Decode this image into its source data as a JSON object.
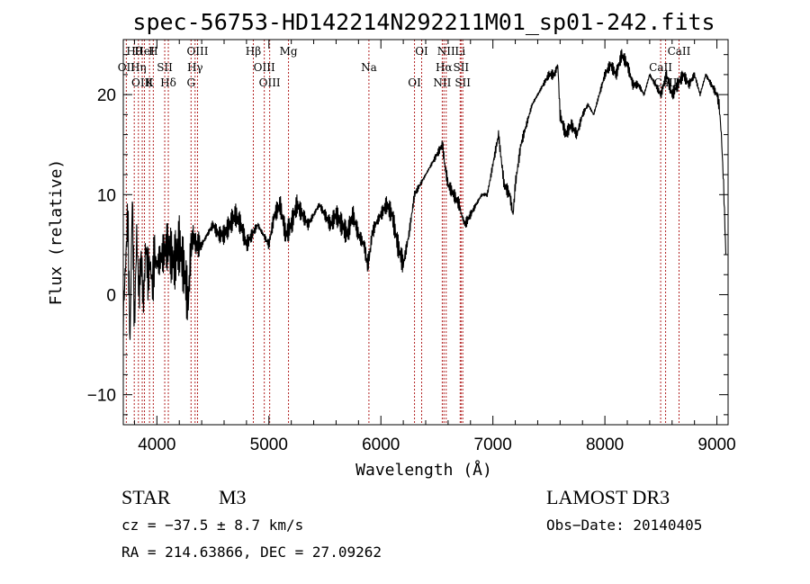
{
  "chart_data": {
    "type": "line",
    "title": "spec-56753-HD142214N292211M01_sp01-242.fits",
    "xlabel": "Wavelength (Å)",
    "ylabel": "Flux (relative)",
    "xlim": [
      3700,
      9100
    ],
    "ylim": [
      -13,
      25.5
    ],
    "x_ticks": [
      4000,
      5000,
      6000,
      7000,
      8000,
      9000
    ],
    "y_ticks": [
      -10,
      0,
      10,
      20
    ],
    "grid": false,
    "series": [
      {
        "name": "spectrum",
        "x": [
          3700,
          3740,
          3760,
          3780,
          3800,
          3820,
          3840,
          3860,
          3880,
          3900,
          3920,
          3940,
          3960,
          3980,
          4000,
          4050,
          4100,
          4150,
          4200,
          4250,
          4280,
          4300,
          4320,
          4350,
          4400,
          4450,
          4500,
          4550,
          4600,
          4650,
          4700,
          4750,
          4800,
          4850,
          4900,
          4950,
          5000,
          5050,
          5100,
          5150,
          5200,
          5250,
          5300,
          5350,
          5400,
          5450,
          5500,
          5550,
          5600,
          5650,
          5700,
          5750,
          5800,
          5850,
          5880,
          5900,
          5920,
          5950,
          6000,
          6050,
          6100,
          6150,
          6200,
          6250,
          6300,
          6350,
          6400,
          6450,
          6500,
          6550,
          6570,
          6600,
          6650,
          6700,
          6720,
          6750,
          6800,
          6850,
          6900,
          6950,
          7000,
          7050,
          7100,
          7150,
          7180,
          7200,
          7250,
          7300,
          7350,
          7400,
          7450,
          7500,
          7550,
          7580,
          7600,
          7650,
          7700,
          7750,
          7800,
          7850,
          7900,
          7950,
          8000,
          8050,
          8100,
          8150,
          8200,
          8250,
          8300,
          8350,
          8400,
          8450,
          8500,
          8550,
          8600,
          8650,
          8700,
          8750,
          8800,
          8850,
          8900,
          8950,
          9000,
          9020,
          9040,
          9060,
          9080
        ],
        "values": [
          -2,
          8,
          -5,
          10,
          -3,
          6,
          0,
          4,
          -1,
          5,
          2,
          3,
          1,
          4,
          3,
          4,
          5,
          3,
          5,
          2,
          -1,
          4,
          6,
          5,
          5,
          6,
          7,
          6,
          6,
          7,
          8,
          7,
          5,
          6,
          7,
          6,
          5,
          8,
          9,
          6,
          7,
          9,
          8,
          7,
          8,
          9,
          8,
          7,
          8,
          7,
          6,
          8,
          6,
          5,
          3,
          4,
          6,
          7,
          8,
          9,
          8,
          5,
          3,
          6,
          10,
          11,
          12,
          13,
          14,
          15,
          13,
          11,
          10,
          9,
          8,
          7,
          8,
          9,
          10,
          10,
          13,
          16,
          11,
          10,
          8,
          11,
          15,
          17,
          19,
          20,
          21,
          22,
          22,
          23,
          18,
          16,
          17,
          16,
          18,
          19,
          18,
          20,
          22,
          23,
          22,
          24,
          23,
          21,
          21,
          20,
          22,
          21,
          20,
          22,
          20,
          21,
          22,
          21,
          22,
          20,
          22,
          21,
          20,
          19,
          16,
          11,
          4
        ]
      }
    ],
    "spectral_lines": [
      {
        "name": "Hθ",
        "wavelength": 3798
      },
      {
        "name": "OII",
        "wavelength": 3727
      },
      {
        "name": "OIII",
        "wavelength": 3869
      },
      {
        "name": "HeI",
        "wavelength": 3889
      },
      {
        "name": "Hη",
        "wavelength": 3835
      },
      {
        "name": "K",
        "wavelength": 3934
      },
      {
        "name": "H",
        "wavelength": 3968
      },
      {
        "name": "SII",
        "wavelength": 4070
      },
      {
        "name": "Hδ",
        "wavelength": 4102
      },
      {
        "name": "OIII",
        "wavelength": 4363
      },
      {
        "name": "Hγ",
        "wavelength": 4341
      },
      {
        "name": "G",
        "wavelength": 4305
      },
      {
        "name": "Hβ",
        "wavelength": 4861
      },
      {
        "name": "OIII",
        "wavelength": 4959
      },
      {
        "name": "OIII",
        "wavelength": 5007
      },
      {
        "name": "Mg",
        "wavelength": 5175
      },
      {
        "name": "Na",
        "wavelength": 5893
      },
      {
        "name": "OI",
        "wavelength": 6300
      },
      {
        "name": "OI",
        "wavelength": 6364
      },
      {
        "name": "Hα",
        "wavelength": 6563
      },
      {
        "name": "NII",
        "wavelength": 6548
      },
      {
        "name": "NII",
        "wavelength": 6583
      },
      {
        "name": "SII",
        "wavelength": 6716
      },
      {
        "name": "SII",
        "wavelength": 6731
      },
      {
        "name": "Li",
        "wavelength": 6708
      },
      {
        "name": "CaII",
        "wavelength": 8498
      },
      {
        "name": "CaII",
        "wavelength": 8542
      },
      {
        "name": "CaII",
        "wavelength": 8662
      }
    ]
  },
  "info": {
    "class": "STAR",
    "subclass": "M3",
    "survey": "LAMOST DR3",
    "cz": "cz = −37.5 ± 8.7 km/s",
    "obs_date": "Obs−Date: 20140405",
    "radec": "RA = 214.63866, DEC =  27.09262"
  },
  "colors": {
    "line_marker": "#b22222",
    "spectrum": "#000000"
  }
}
